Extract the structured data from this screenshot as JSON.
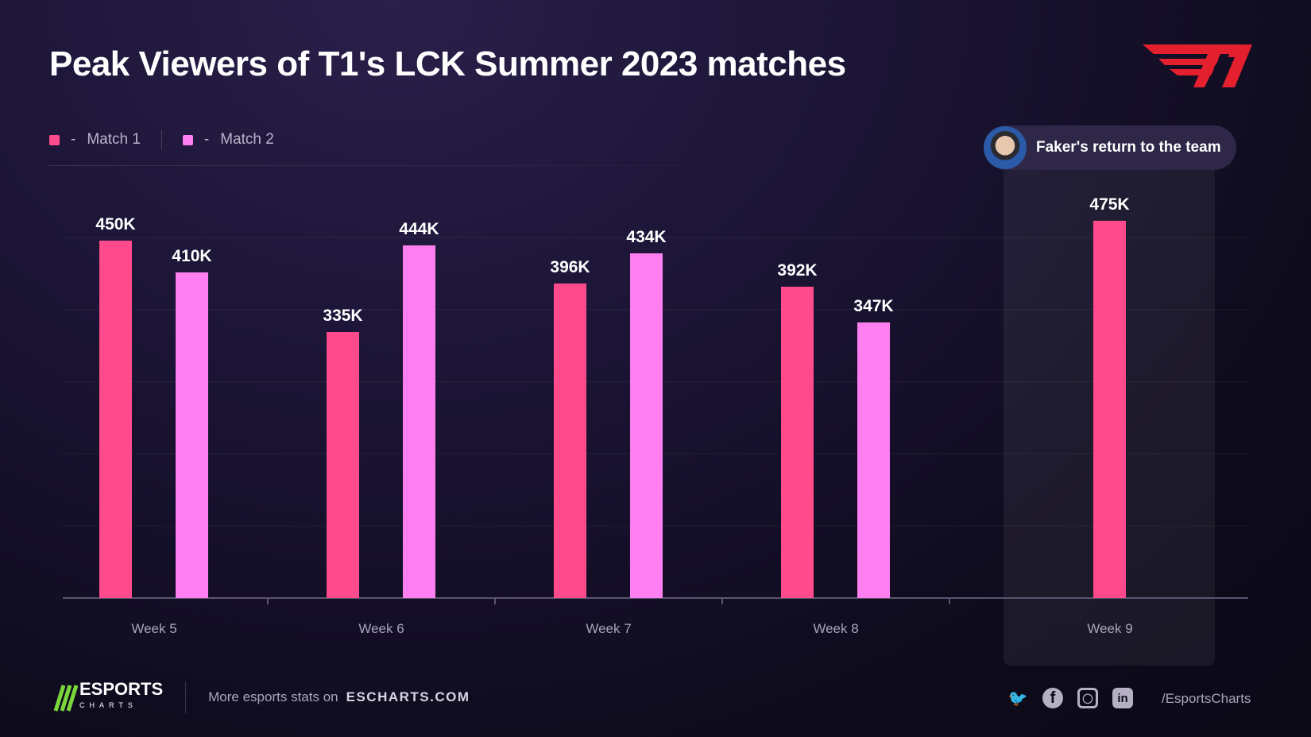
{
  "chart_data": {
    "type": "bar",
    "title": "Peak Viewers of T1's LCK Summer 2023 matches",
    "categories": [
      "Week 5",
      "Week 6",
      "Week 7",
      "Week 8",
      "Week 9"
    ],
    "series": [
      {
        "name": "Match 1",
        "color": "#ff4a8b",
        "values": [
          450,
          335,
          396,
          392,
          475
        ],
        "labels": [
          "450K",
          "335K",
          "396K",
          "392K",
          "475K"
        ]
      },
      {
        "name": "Match 2",
        "color": "#ff7ef0",
        "values": [
          410,
          444,
          434,
          347,
          null
        ],
        "labels": [
          "410K",
          "444K",
          "434K",
          "347K",
          null
        ]
      }
    ],
    "unit": "K viewers",
    "ylim": [
      0,
      500
    ],
    "grid": true,
    "legend": "top-left",
    "highlight": {
      "category": "Week 9",
      "annotation": "Faker's return to the team"
    }
  },
  "legend": {
    "dash": "-",
    "match1": "Match 1",
    "match2": "Match 2"
  },
  "logo": {
    "text": "T1",
    "color": "#e4202e"
  },
  "footer": {
    "brand": "ESPORTS",
    "brand_sub": "CHARTS",
    "more": "More esports stats on",
    "site": "ESCHARTS.COM",
    "handle": "/EsportsCharts",
    "icons": [
      "twitter-icon",
      "facebook-icon",
      "instagram-icon",
      "linkedin-icon"
    ]
  }
}
